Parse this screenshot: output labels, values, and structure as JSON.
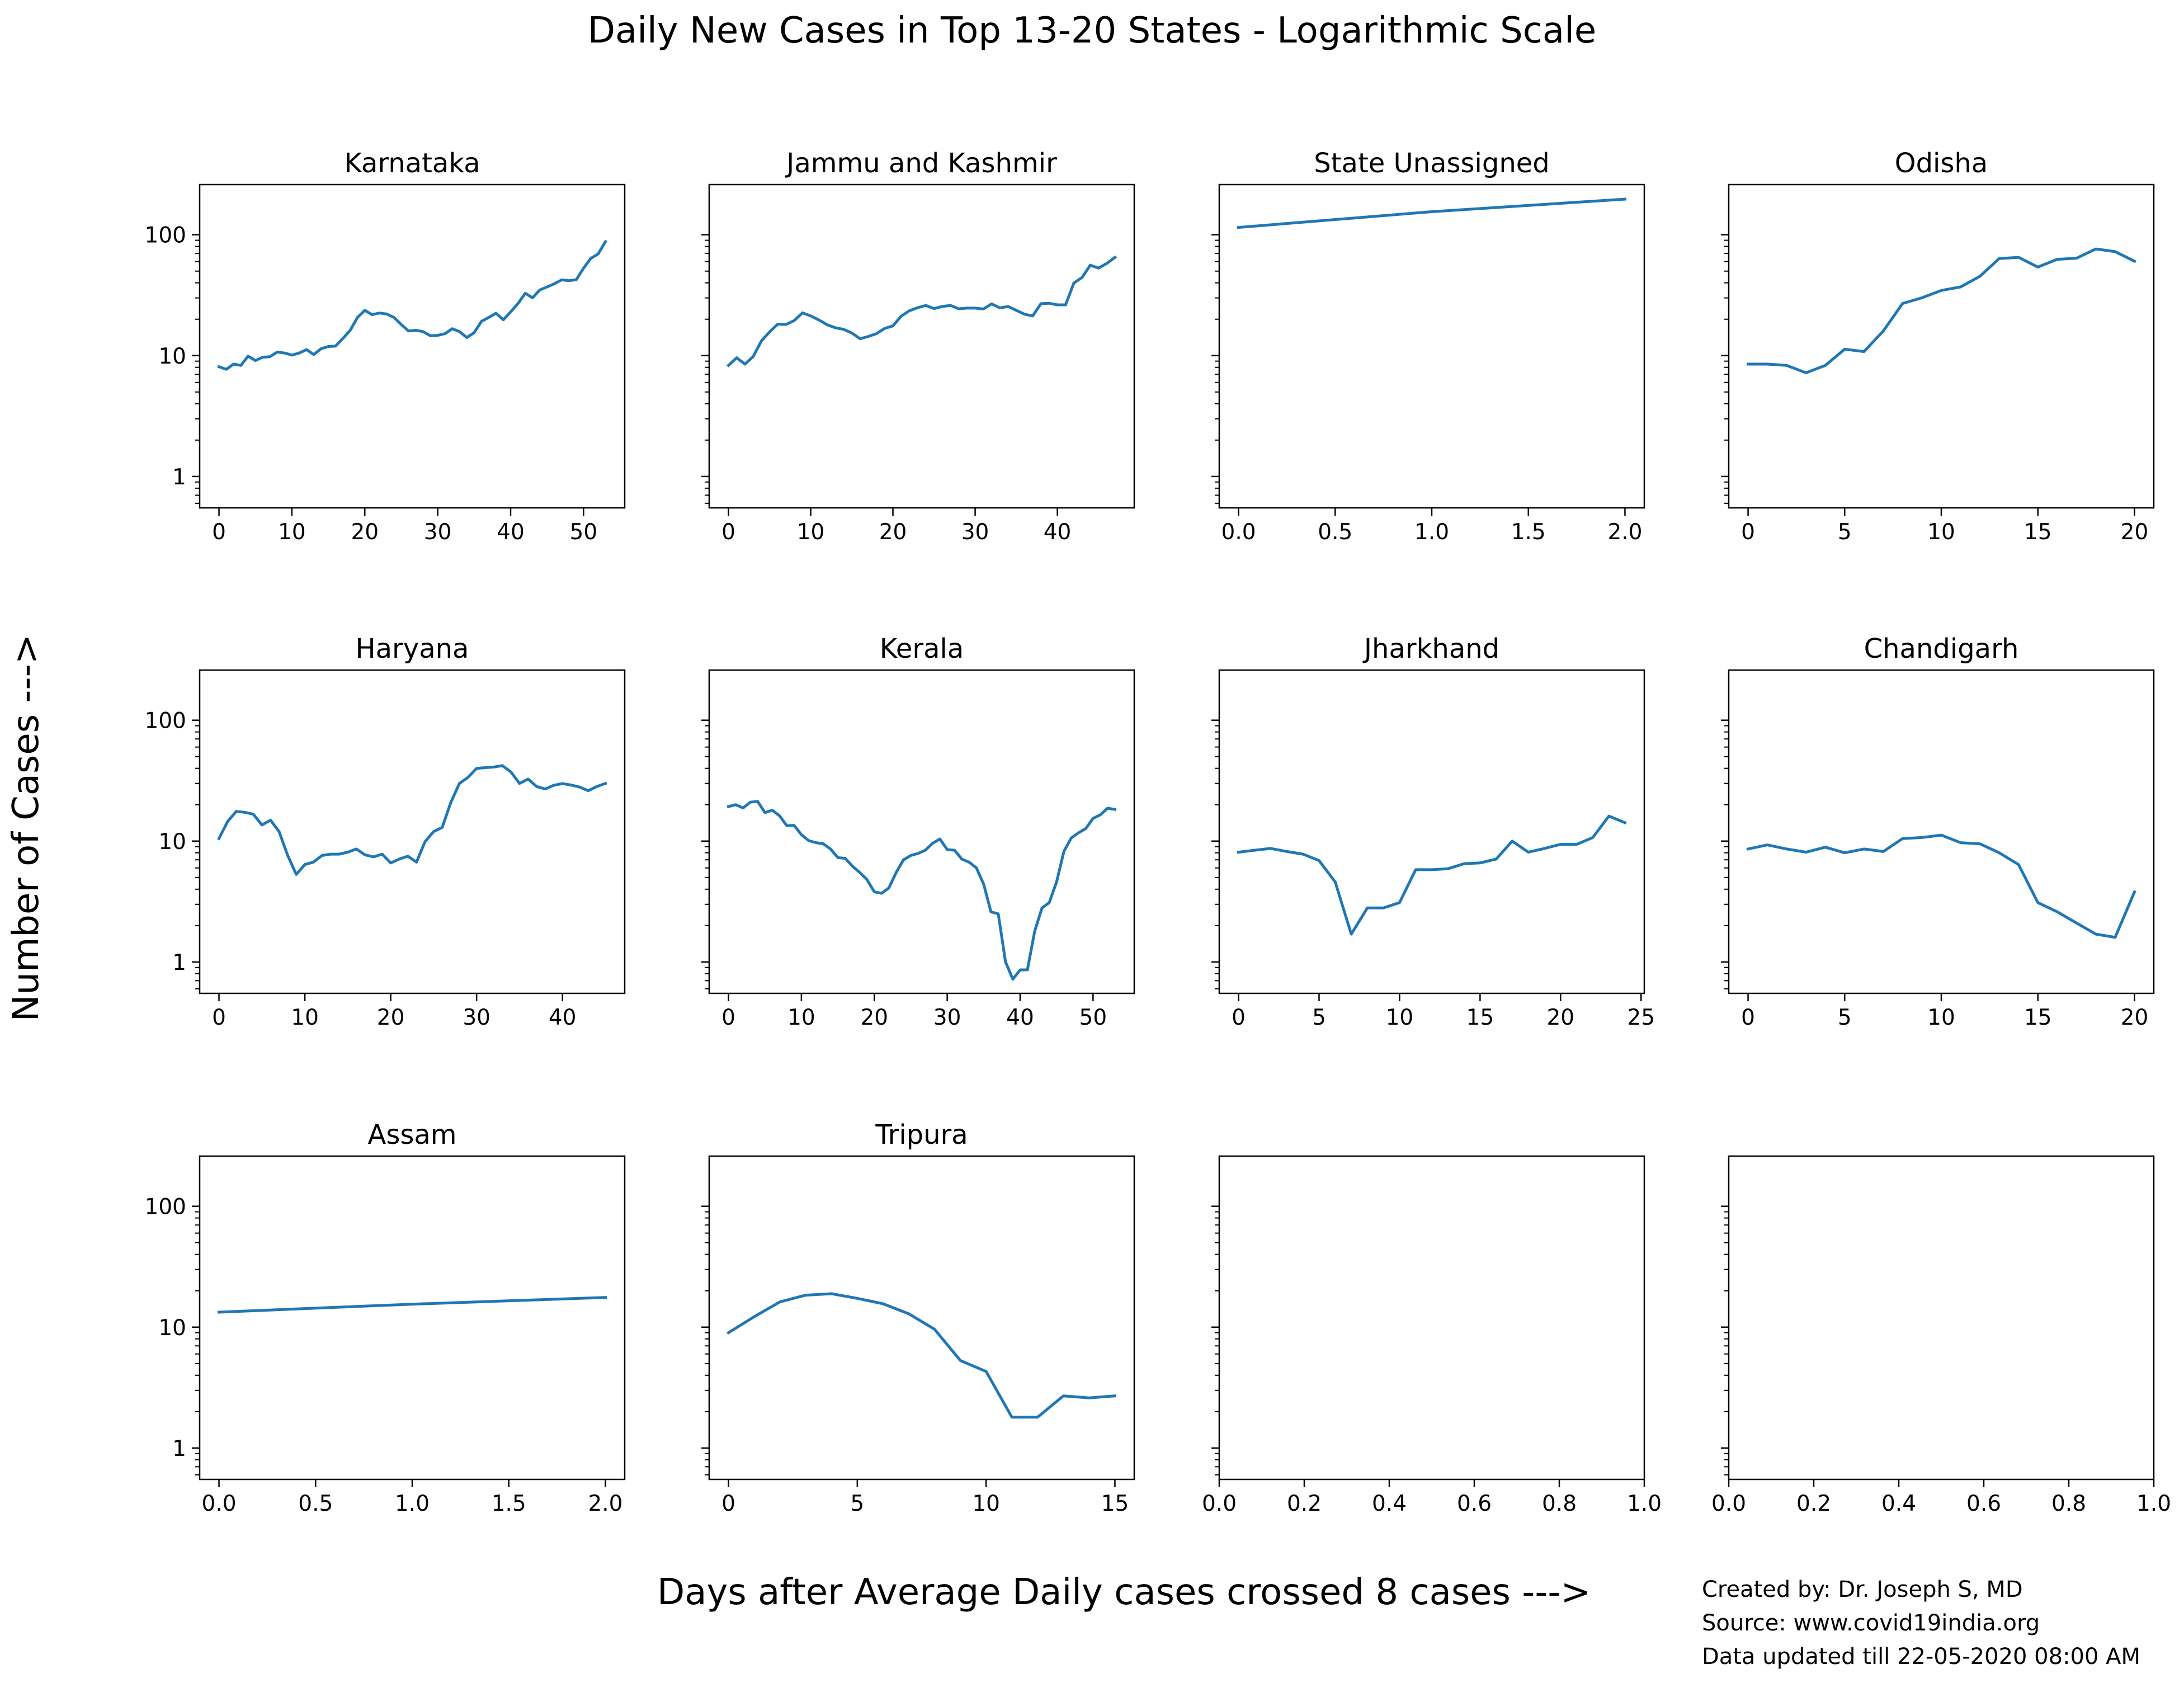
{
  "figure": {
    "title": "Daily New Cases in Top 13-20 States - Logarithmic Scale",
    "ylabel": "Number of Cases --->",
    "xlabel": "Days after Average Daily cases crossed 8 cases --->",
    "credits": [
      "Created by: Dr. Joseph S, MD",
      "Source: www.covid19india.org",
      "Data updated till 22-05-2020 08:00 AM"
    ],
    "line_color": "#1f77b4"
  },
  "chart_data": [
    {
      "type": "line",
      "title": "Karnataka",
      "yscale": "log",
      "ylim": [
        0.55,
        260
      ],
      "xlim": [
        -2.65,
        55.65
      ],
      "xticks": [
        0,
        10,
        20,
        30,
        40,
        50
      ],
      "xtick_labels": [
        "0",
        "10",
        "20",
        "30",
        "40",
        "50"
      ],
      "yticks": [
        1,
        10,
        100
      ],
      "ytick_labels": [
        "1",
        "10",
        "100"
      ],
      "show_ytick_labels": true,
      "x": [
        0,
        1,
        2,
        3,
        4,
        5,
        6,
        7,
        8,
        9,
        10,
        11,
        12,
        13,
        14,
        15,
        16,
        17,
        18,
        19,
        20,
        21,
        22,
        23,
        24,
        25,
        26,
        27,
        28,
        29,
        30,
        31,
        32,
        33,
        34,
        35,
        36,
        37,
        38,
        39,
        40,
        41,
        42,
        43,
        44,
        45,
        46,
        47,
        48,
        49,
        50,
        51,
        52,
        53
      ],
      "y": [
        8.1,
        7.7,
        8.5,
        8.3,
        9.9,
        9.1,
        9.7,
        9.8,
        10.7,
        10.5,
        10.1,
        10.5,
        11.2,
        10.2,
        11.4,
        11.9,
        12.0,
        13.9,
        16.2,
        20.7,
        23.7,
        21.8,
        22.5,
        22.1,
        20.7,
        18.1,
        16.0,
        16.2,
        15.8,
        14.6,
        14.7,
        15.2,
        16.7,
        15.8,
        14.1,
        15.5,
        19.2,
        20.7,
        22.4,
        19.8,
        23.0,
        26.9,
        32.8,
        30.1,
        34.9,
        37.0,
        39.3,
        42.3,
        41.7,
        42.4,
        52.8,
        63.8,
        69.3,
        87.6
      ]
    },
    {
      "type": "line",
      "title": "Jammu and Kashmir",
      "yscale": "log",
      "ylim": [
        0.55,
        260
      ],
      "xlim": [
        -2.35,
        49.35
      ],
      "xticks": [
        0,
        10,
        20,
        30,
        40
      ],
      "xtick_labels": [
        "0",
        "10",
        "20",
        "30",
        "40"
      ],
      "yticks": [
        1,
        10,
        100
      ],
      "ytick_labels": [
        "1",
        "10",
        "100"
      ],
      "show_ytick_labels": false,
      "x": [
        0,
        1,
        2,
        3,
        4,
        5,
        6,
        7,
        8,
        9,
        10,
        11,
        12,
        13,
        14,
        15,
        16,
        17,
        18,
        19,
        20,
        21,
        22,
        23,
        24,
        25,
        26,
        27,
        28,
        29,
        30,
        31,
        32,
        33,
        34,
        35,
        36,
        37,
        38,
        39,
        40,
        41,
        42,
        43,
        44,
        45,
        46,
        47
      ],
      "y": [
        8.3,
        9.6,
        8.5,
        9.8,
        13.2,
        15.7,
        18.2,
        18.1,
        19.5,
        22.6,
        21.3,
        19.7,
        18.0,
        17.0,
        16.5,
        15.4,
        13.8,
        14.4,
        15.2,
        16.8,
        17.6,
        21.2,
        23.5,
        24.9,
        26.0,
        24.5,
        25.5,
        26.0,
        24.4,
        24.7,
        24.7,
        24.3,
        26.8,
        24.8,
        25.5,
        23.7,
        22.0,
        21.3,
        26.9,
        27.1,
        26.3,
        26.3,
        39.8,
        44.3,
        56.0,
        53.0,
        57.8,
        65.0
      ]
    },
    {
      "type": "line",
      "title": "State Unassigned",
      "yscale": "log",
      "ylim": [
        0.55,
        260
      ],
      "xlim": [
        -0.1,
        2.1
      ],
      "xticks": [
        0,
        0.5,
        1,
        1.5,
        2
      ],
      "xtick_labels": [
        "0.0",
        "0.5",
        "1.0",
        "1.5",
        "2.0"
      ],
      "yticks": [
        1,
        10,
        100
      ],
      "ytick_labels": [
        "1",
        "10",
        "100"
      ],
      "show_ytick_labels": false,
      "x": [
        0,
        1,
        2
      ],
      "y": [
        115,
        155,
        197
      ]
    },
    {
      "type": "line",
      "title": "Odisha",
      "yscale": "log",
      "ylim": [
        0.55,
        260
      ],
      "xlim": [
        -1.0,
        21.0
      ],
      "xticks": [
        0,
        5,
        10,
        15,
        20
      ],
      "xtick_labels": [
        "0",
        "5",
        "10",
        "15",
        "20"
      ],
      "yticks": [
        1,
        10,
        100
      ],
      "ytick_labels": [
        "1",
        "10",
        "100"
      ],
      "show_ytick_labels": false,
      "x": [
        0,
        1,
        2,
        3,
        4,
        5,
        6,
        7,
        8,
        9,
        10,
        11,
        12,
        13,
        14,
        15,
        16,
        17,
        18,
        19,
        20
      ],
      "y": [
        8.5,
        8.5,
        8.3,
        7.2,
        8.3,
        11.3,
        10.8,
        16.0,
        27.0,
        30.1,
        34.6,
        37.0,
        45.3,
        63.5,
        65.0,
        54.0,
        62.6,
        64.0,
        76.3,
        72.5,
        60.4
      ]
    },
    {
      "type": "line",
      "title": "Haryana",
      "yscale": "log",
      "ylim": [
        0.55,
        260
      ],
      "xlim": [
        -2.25,
        47.25
      ],
      "xticks": [
        0,
        10,
        20,
        30,
        40
      ],
      "xtick_labels": [
        "0",
        "10",
        "20",
        "30",
        "40"
      ],
      "yticks": [
        1,
        10,
        100
      ],
      "ytick_labels": [
        "1",
        "10",
        "100"
      ],
      "show_ytick_labels": true,
      "x": [
        0,
        1,
        2,
        3,
        4,
        5,
        6,
        7,
        8,
        9,
        10,
        11,
        12,
        13,
        14,
        15,
        16,
        17,
        18,
        19,
        20,
        21,
        22,
        23,
        24,
        25,
        26,
        27,
        28,
        29,
        30,
        31,
        32,
        33,
        34,
        35,
        36,
        37,
        38,
        39,
        40,
        41,
        42,
        43,
        44,
        45
      ],
      "y": [
        10.5,
        14.5,
        17.6,
        17.3,
        16.7,
        13.6,
        14.9,
        12.0,
        7.6,
        5.3,
        6.4,
        6.7,
        7.6,
        7.8,
        7.8,
        8.1,
        8.6,
        7.7,
        7.4,
        7.8,
        6.6,
        7.1,
        7.5,
        6.7,
        9.9,
        12.0,
        13.0,
        20.9,
        30.0,
        33.7,
        40.0,
        40.5,
        41.0,
        42.1,
        37.3,
        30.0,
        32.6,
        28.3,
        27.0,
        29.0,
        29.9,
        29.1,
        28.0,
        26.1,
        28.3,
        30.0
      ]
    },
    {
      "type": "line",
      "title": "Kerala",
      "yscale": "log",
      "ylim": [
        0.55,
        260
      ],
      "xlim": [
        -2.65,
        55.65
      ],
      "xticks": [
        0,
        10,
        20,
        30,
        40,
        50
      ],
      "xtick_labels": [
        "0",
        "10",
        "20",
        "30",
        "40",
        "50"
      ],
      "yticks": [
        1,
        10,
        100
      ],
      "ytick_labels": [
        "1",
        "10",
        "100"
      ],
      "show_ytick_labels": false,
      "x": [
        0,
        1,
        2,
        3,
        4,
        5,
        6,
        7,
        8,
        9,
        10,
        11,
        12,
        13,
        14,
        15,
        16,
        17,
        18,
        19,
        20,
        21,
        22,
        23,
        24,
        25,
        26,
        27,
        28,
        29,
        30,
        31,
        32,
        33,
        34,
        35,
        36,
        37,
        38,
        39,
        40,
        41,
        42,
        43,
        44,
        45,
        46,
        47,
        48,
        49,
        50,
        51,
        52,
        53
      ],
      "y": [
        19.3,
        20.0,
        18.8,
        21.0,
        21.3,
        17.2,
        18.0,
        16.2,
        13.4,
        13.5,
        11.3,
        10.1,
        9.7,
        9.5,
        8.6,
        7.3,
        7.2,
        6.2,
        5.5,
        4.8,
        3.8,
        3.7,
        4.1,
        5.5,
        7.0,
        7.6,
        7.9,
        8.4,
        9.6,
        10.4,
        8.5,
        8.4,
        7.1,
        6.7,
        6.0,
        4.4,
        2.6,
        2.5,
        1.0,
        0.72,
        0.86,
        0.86,
        1.8,
        2.8,
        3.1,
        4.6,
        8.2,
        10.6,
        11.7,
        12.7,
        15.4,
        16.5,
        18.7,
        18.3
      ]
    },
    {
      "type": "line",
      "title": "Jharkhand",
      "yscale": "log",
      "ylim": [
        0.55,
        260
      ],
      "xlim": [
        -1.2,
        25.2
      ],
      "xticks": [
        0,
        5,
        10,
        15,
        20,
        25
      ],
      "xtick_labels": [
        "0",
        "5",
        "10",
        "15",
        "20",
        "25"
      ],
      "yticks": [
        1,
        10,
        100
      ],
      "ytick_labels": [
        "1",
        "10",
        "100"
      ],
      "show_ytick_labels": false,
      "x": [
        0,
        1,
        2,
        3,
        4,
        5,
        6,
        7,
        8,
        9,
        10,
        11,
        12,
        13,
        14,
        15,
        16,
        17,
        18,
        19,
        20,
        21,
        22,
        23,
        24
      ],
      "y": [
        8.1,
        8.4,
        8.7,
        8.2,
        7.8,
        6.9,
        4.6,
        1.7,
        2.8,
        2.8,
        3.1,
        5.8,
        5.8,
        5.9,
        6.5,
        6.6,
        7.1,
        10.0,
        8.1,
        8.7,
        9.4,
        9.4,
        10.7,
        16.1,
        14.2
      ]
    },
    {
      "type": "line",
      "title": "Chandigarh",
      "yscale": "log",
      "ylim": [
        0.55,
        260
      ],
      "xlim": [
        -1.0,
        21.0
      ],
      "xticks": [
        0,
        5,
        10,
        15,
        20
      ],
      "xtick_labels": [
        "0",
        "5",
        "10",
        "15",
        "20"
      ],
      "yticks": [
        1,
        10,
        100
      ],
      "ytick_labels": [
        "1",
        "10",
        "100"
      ],
      "show_ytick_labels": false,
      "x": [
        0,
        1,
        2,
        3,
        4,
        5,
        6,
        7,
        8,
        9,
        10,
        11,
        12,
        13,
        14,
        15,
        16,
        17,
        18,
        19,
        20
      ],
      "y": [
        8.6,
        9.3,
        8.6,
        8.1,
        8.9,
        8.0,
        8.6,
        8.2,
        10.5,
        10.7,
        11.2,
        9.7,
        9.5,
        8.0,
        6.4,
        3.1,
        2.6,
        2.1,
        1.7,
        1.6,
        3.8
      ]
    },
    {
      "type": "line",
      "title": "Assam",
      "yscale": "log",
      "ylim": [
        0.55,
        260
      ],
      "xlim": [
        -0.1,
        2.1
      ],
      "xticks": [
        0,
        0.5,
        1,
        1.5,
        2
      ],
      "xtick_labels": [
        "0.0",
        "0.5",
        "1.0",
        "1.5",
        "2.0"
      ],
      "yticks": [
        1,
        10,
        100
      ],
      "ytick_labels": [
        "1",
        "10",
        "100"
      ],
      "show_ytick_labels": true,
      "x": [
        0,
        1,
        2
      ],
      "y": [
        13.3,
        15.5,
        17.6
      ]
    },
    {
      "type": "line",
      "title": "Tripura",
      "yscale": "log",
      "ylim": [
        0.55,
        260
      ],
      "xlim": [
        -0.75,
        15.75
      ],
      "xticks": [
        0,
        5,
        10,
        15
      ],
      "xtick_labels": [
        "0",
        "5",
        "10",
        "15"
      ],
      "yticks": [
        1,
        10,
        100
      ],
      "ytick_labels": [
        "1",
        "10",
        "100"
      ],
      "show_ytick_labels": false,
      "x": [
        0,
        1,
        2,
        3,
        4,
        5,
        6,
        7,
        8,
        9,
        10,
        11,
        12,
        13,
        14,
        15
      ],
      "y": [
        9.0,
        12.2,
        16.2,
        18.4,
        18.9,
        17.3,
        15.6,
        12.9,
        9.6,
        5.3,
        4.3,
        1.8,
        1.8,
        2.7,
        2.6,
        2.7
      ]
    },
    {
      "type": "line",
      "title": "",
      "yscale": "log",
      "ylim": [
        0.55,
        260
      ],
      "xlim": [
        0,
        1
      ],
      "xticks": [
        0,
        0.2,
        0.4,
        0.6,
        0.8,
        1.0
      ],
      "xtick_labels": [
        "0.0",
        "0.2",
        "0.4",
        "0.6",
        "0.8",
        "1.0"
      ],
      "yticks": [
        1,
        10,
        100
      ],
      "ytick_labels": [
        "1",
        "10",
        "100"
      ],
      "show_ytick_labels": false,
      "x": [],
      "y": []
    },
    {
      "type": "line",
      "title": "",
      "yscale": "log",
      "ylim": [
        0.55,
        260
      ],
      "xlim": [
        0,
        1
      ],
      "xticks": [
        0,
        0.2,
        0.4,
        0.6,
        0.8,
        1.0
      ],
      "xtick_labels": [
        "0.0",
        "0.2",
        "0.4",
        "0.6",
        "0.8",
        "1.0"
      ],
      "yticks": [
        1,
        10,
        100
      ],
      "ytick_labels": [
        "1",
        "10",
        "100"
      ],
      "show_ytick_labels": false,
      "x": [],
      "y": []
    }
  ]
}
